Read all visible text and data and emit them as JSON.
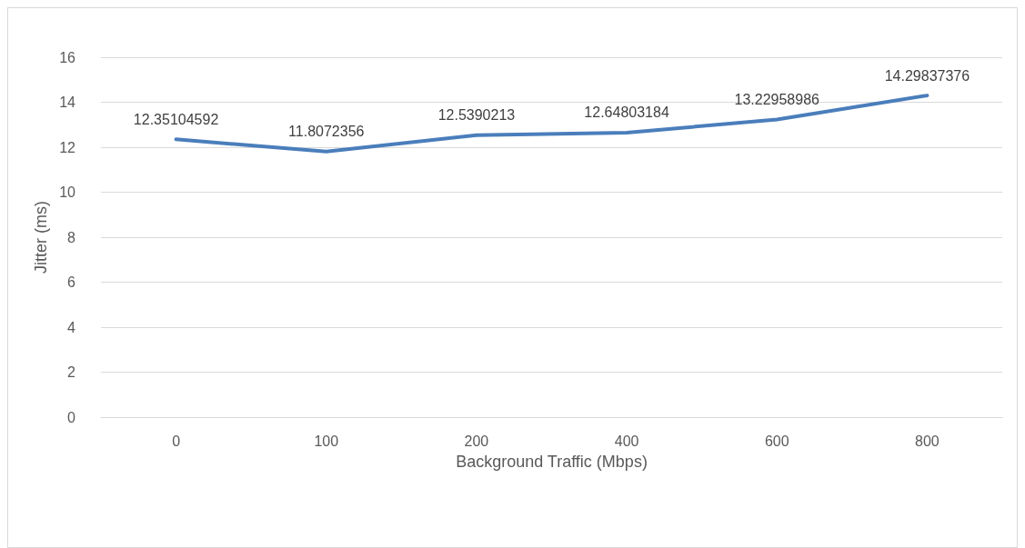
{
  "chart_data": {
    "type": "line",
    "xlabel": "Background Traffic (Mbps)",
    "ylabel": "Jitter (ms)",
    "categories": [
      "0",
      "100",
      "200",
      "400",
      "600",
      "800"
    ],
    "series": [
      {
        "color": "#4a7ebb",
        "values": [
          12.35104592,
          11.8072356,
          12.5390213,
          12.64803184,
          13.22958986,
          14.29837376
        ]
      }
    ],
    "ylim": [
      0,
      16
    ],
    "yticks": [
      0,
      2,
      4,
      6,
      8,
      10,
      12,
      14,
      16
    ],
    "grid": "y",
    "marker": "none",
    "line_style": "solid",
    "data_labels": true
  }
}
